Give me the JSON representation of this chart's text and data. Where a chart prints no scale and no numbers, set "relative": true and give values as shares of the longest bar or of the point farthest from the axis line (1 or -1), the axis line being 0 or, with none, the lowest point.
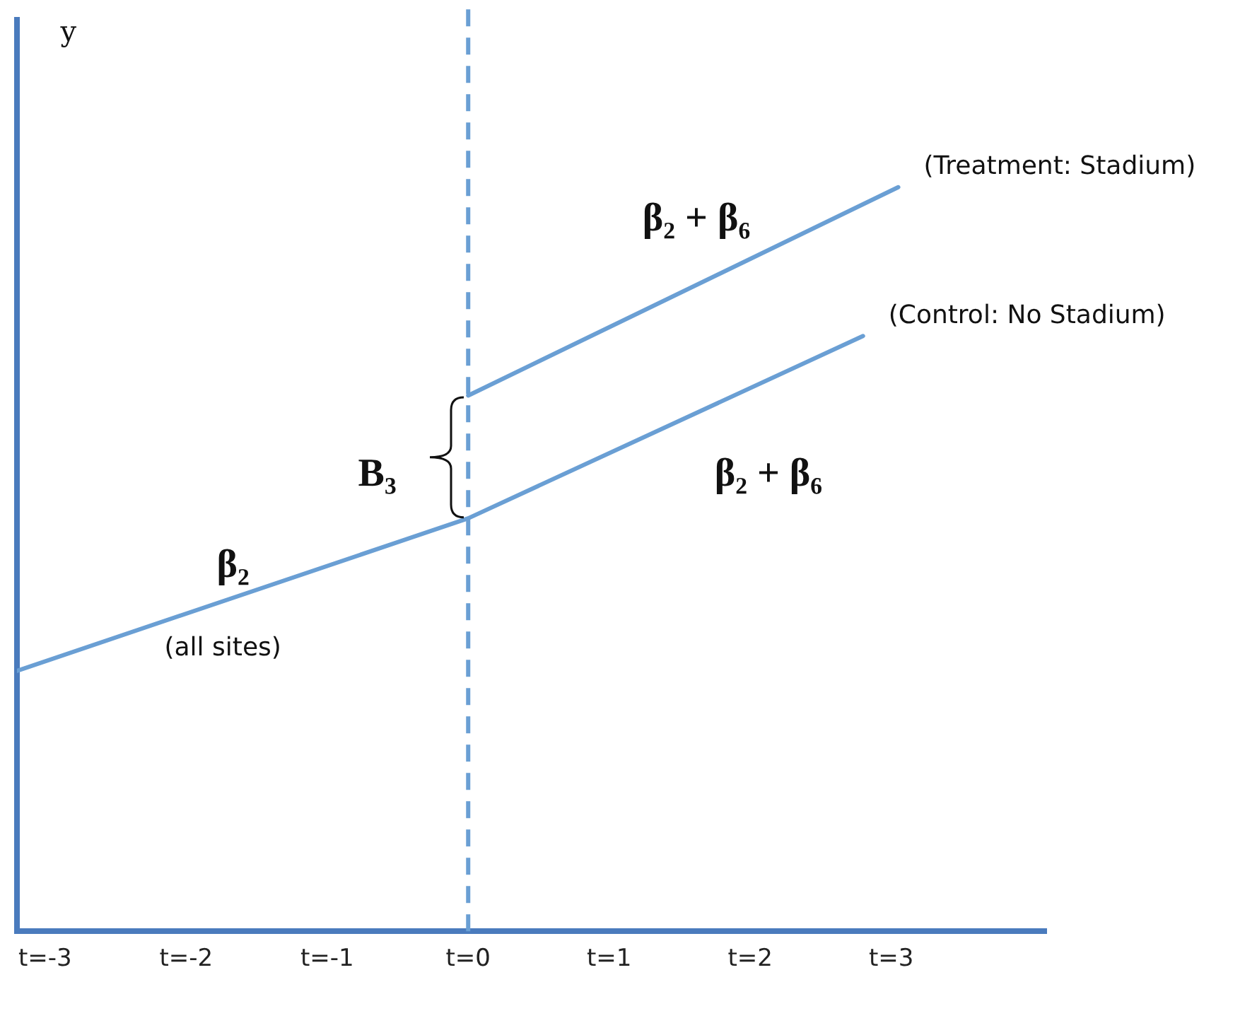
{
  "chart_data": {
    "type": "line",
    "relative": true,
    "marker": "none",
    "legend": false,
    "grid": false,
    "xlim": [
      -3.2,
      4.1
    ],
    "xticks": [
      {
        "value": -3,
        "label": "t=-3"
      },
      {
        "value": -2,
        "label": "t=-2"
      },
      {
        "value": -1,
        "label": "t=-1"
      },
      {
        "value": 0,
        "label": "t=0"
      },
      {
        "value": 1,
        "label": "t=1"
      },
      {
        "value": 2,
        "label": "t=2"
      },
      {
        "value": 3,
        "label": "t=3"
      }
    ],
    "series": [
      {
        "name": "(Treatment: Stadium)",
        "color": "#6a9fd4",
        "x": [
          0,
          3.05
        ],
        "values": [
          0.72,
          1
        ]
      },
      {
        "name": "(Control: No Stadium)",
        "color": "#6a9fd4",
        "x": [
          -3.2,
          0,
          2.8
        ],
        "values": [
          0.35,
          0.555,
          0.8
        ]
      }
    ],
    "ref_lines": [
      {
        "axis": "x",
        "value": 0,
        "color": "#6a9fd4",
        "line_style": "dashed"
      }
    ],
    "annotations": [
      "β₂",
      "(all sites)",
      "β₂ + β₆",
      "β₂ + β₆",
      "B₃",
      "y"
    ]
  }
}
